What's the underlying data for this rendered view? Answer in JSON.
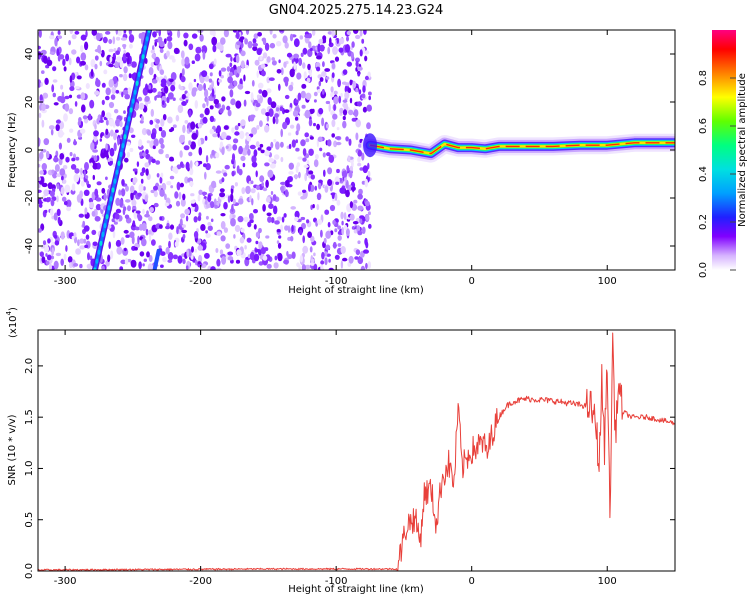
{
  "title": "GN04.2025.275.14.23.G24",
  "chart_data": [
    {
      "type": "heatmap",
      "title": "GN04.2025.275.14.23.G24",
      "xlabel": "Height of straight line (km)",
      "ylabel": "Frequency (Hz)",
      "xlim": [
        -320,
        150
      ],
      "ylim": [
        -50,
        50
      ],
      "xticks": [
        "-300",
        "-200",
        "-100",
        "0",
        "100"
      ],
      "yticks": [
        "-40",
        "-20",
        "0",
        "20",
        "40"
      ],
      "grid": false,
      "noise_region_x": [
        -320,
        -75
      ],
      "diagonal_trace": [
        {
          "x": -278,
          "y": -50
        },
        {
          "x": -238,
          "y": 50
        }
      ],
      "secondary_trace": [
        {
          "x": -234,
          "y": -50
        },
        {
          "x": -231,
          "y": -42
        }
      ],
      "main_signal": [
        {
          "x": -75,
          "y": 2
        },
        {
          "x": -60,
          "y": 0.5
        },
        {
          "x": -45,
          "y": 0
        },
        {
          "x": -30,
          "y": -1.5
        },
        {
          "x": -20,
          "y": 2.5
        },
        {
          "x": -10,
          "y": 1
        },
        {
          "x": 0,
          "y": 1
        },
        {
          "x": 10,
          "y": 0.5
        },
        {
          "x": 20,
          "y": 1.5
        },
        {
          "x": 40,
          "y": 1.5
        },
        {
          "x": 60,
          "y": 1.5
        },
        {
          "x": 80,
          "y": 2
        },
        {
          "x": 100,
          "y": 2
        },
        {
          "x": 120,
          "y": 3
        },
        {
          "x": 150,
          "y": 3
        }
      ],
      "colorbar": {
        "label": "Normalized spectral amplitude",
        "range": [
          0,
          1
        ],
        "ticks": [
          "0.0",
          "0.2",
          "0.4",
          "0.6",
          "0.8"
        ],
        "colors": [
          "#ffffff",
          "#8000ff",
          "#0040ff",
          "#00c8ff",
          "#00ff80",
          "#60ff00",
          "#ffff00",
          "#ff8000",
          "#ff0000",
          "#ff0080"
        ]
      }
    },
    {
      "type": "line",
      "xlabel": "Height of straight line (km)",
      "ylabel": "SNR (10 * v/v)",
      "yscale_label": "(x10",
      "yscale_exp": "4",
      "yscale_close": ")",
      "xlim": [
        -320,
        150
      ],
      "ylim": [
        0,
        2.35
      ],
      "xticks": [
        "-300",
        "-200",
        "-100",
        "0",
        "100"
      ],
      "yticks": [
        "0.0",
        "0.5",
        "1.0",
        "1.5",
        "2.0"
      ],
      "grid": false,
      "series": [
        {
          "color": "#e8403a",
          "points": [
            {
              "x": -320,
              "y": 0.01
            },
            {
              "x": -150,
              "y": 0.02
            },
            {
              "x": -55,
              "y": 0.02
            },
            {
              "x": -48,
              "y": 0.45
            },
            {
              "x": -42,
              "y": 0.52
            },
            {
              "x": -38,
              "y": 0.3
            },
            {
              "x": -35,
              "y": 0.75
            },
            {
              "x": -30,
              "y": 0.8
            },
            {
              "x": -26,
              "y": 0.45
            },
            {
              "x": -22,
              "y": 0.9
            },
            {
              "x": -17,
              "y": 1.05
            },
            {
              "x": -13,
              "y": 0.85
            },
            {
              "x": -10,
              "y": 1.6
            },
            {
              "x": -7,
              "y": 1.0
            },
            {
              "x": -2,
              "y": 1.15
            },
            {
              "x": 3,
              "y": 1.2
            },
            {
              "x": 8,
              "y": 1.25
            },
            {
              "x": 12,
              "y": 1.15
            },
            {
              "x": 15,
              "y": 1.35
            },
            {
              "x": 20,
              "y": 1.5
            },
            {
              "x": 25,
              "y": 1.6
            },
            {
              "x": 30,
              "y": 1.65
            },
            {
              "x": 40,
              "y": 1.68
            },
            {
              "x": 50,
              "y": 1.67
            },
            {
              "x": 60,
              "y": 1.66
            },
            {
              "x": 70,
              "y": 1.64
            },
            {
              "x": 80,
              "y": 1.62
            },
            {
              "x": 88,
              "y": 1.6
            },
            {
              "x": 92,
              "y": 1.4
            },
            {
              "x": 94,
              "y": 1.0
            },
            {
              "x": 96,
              "y": 1.85
            },
            {
              "x": 98,
              "y": 1.2
            },
            {
              "x": 100,
              "y": 2.1
            },
            {
              "x": 102,
              "y": 0.45
            },
            {
              "x": 104,
              "y": 2.3
            },
            {
              "x": 106,
              "y": 1.3
            },
            {
              "x": 108,
              "y": 1.8
            },
            {
              "x": 112,
              "y": 1.55
            },
            {
              "x": 118,
              "y": 1.5
            },
            {
              "x": 130,
              "y": 1.5
            },
            {
              "x": 140,
              "y": 1.47
            },
            {
              "x": 150,
              "y": 1.44
            }
          ]
        }
      ]
    }
  ]
}
